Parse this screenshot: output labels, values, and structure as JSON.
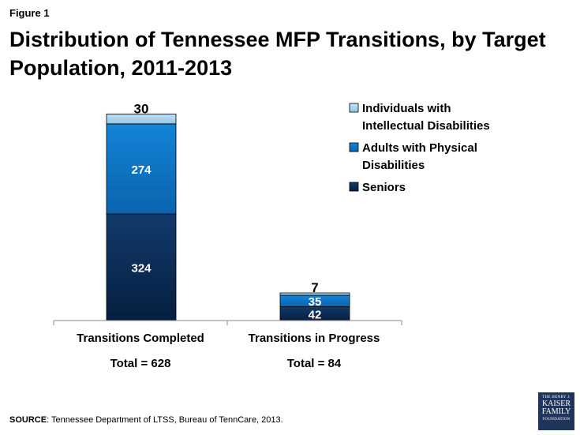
{
  "figure_label": "Figure 1",
  "title": "Distribution of Tennessee MFP Transitions, by Target Population, 2011-2013",
  "source": {
    "label": "SOURCE",
    "text": ": Tennessee Department of LTSS, Bureau of TennCare, 2013."
  },
  "logo": {
    "line1": "THE HENRY J.",
    "line2": "KAISER",
    "line3": "FAMILY",
    "line4": "FOUNDATION"
  },
  "colors": {
    "seniors": "#0d2d57",
    "physical": "#0f74c6",
    "intellectual": "#a6d3ee"
  },
  "chart_data": {
    "type": "bar",
    "stacked": true,
    "categories": [
      "Transitions Completed",
      "Transitions in Progress"
    ],
    "category_totals": [
      "Total = 628",
      "Total = 84"
    ],
    "ylim": [
      0,
      640
    ],
    "grid": false,
    "legend_position": "top-right",
    "series": [
      {
        "name": "Seniors",
        "values": [
          324,
          42
        ],
        "color": "#0d2d57"
      },
      {
        "name": "Adults with Physical Disabilities",
        "values": [
          274,
          35
        ],
        "color": "#0f74c6"
      },
      {
        "name": "Individuals with Intellectual Disabilities",
        "values": [
          30,
          7
        ],
        "color": "#a6d3ee"
      }
    ]
  }
}
